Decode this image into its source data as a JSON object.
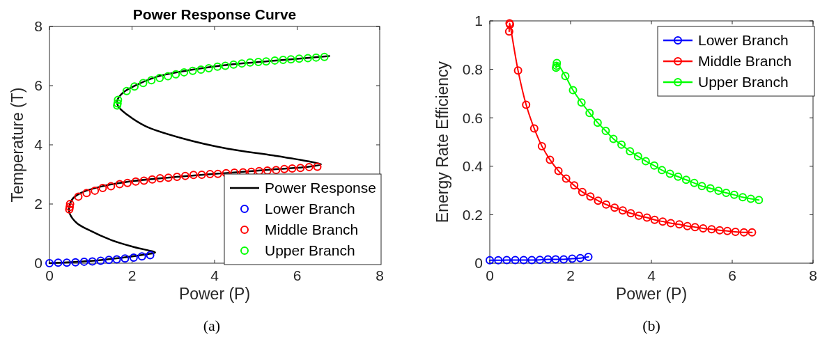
{
  "chart_data": [
    {
      "type": "line",
      "title": "Power Response Curve",
      "xlabel": "Power (P)",
      "ylabel": "Temperature (T)",
      "annotations": [
        "(a)"
      ],
      "xlim": [
        0,
        8
      ],
      "ylim": [
        0,
        8
      ],
      "xticks": [
        0,
        2,
        4,
        6,
        8
      ],
      "yticks": [
        0,
        2,
        4,
        6,
        8
      ],
      "grid": false,
      "legend": "bottom right",
      "marker": "circle",
      "series": [
        {
          "name": "Power Response",
          "color": "#000000",
          "marker": "none",
          "x": [
            0,
            0.94,
            1.78,
            2.4,
            2.56,
            2.06,
            1.5,
            0.94,
            0.66,
            0.49,
            0.48,
            0.57,
            0.77,
            1.22,
            2.06,
            3.19,
            4.31,
            5.43,
            6.28,
            6.58,
            6.28,
            5.43,
            4.31,
            3.19,
            2.34,
            1.89,
            1.67,
            1.64,
            1.78,
            2.06,
            2.62,
            3.47,
            4.31,
            5.43,
            6.78
          ],
          "values": [
            0,
            0.07,
            0.19,
            0.31,
            0.36,
            0.54,
            0.78,
            1.13,
            1.36,
            1.68,
            1.91,
            2.19,
            2.38,
            2.58,
            2.78,
            2.93,
            3.05,
            3.17,
            3.26,
            3.34,
            3.44,
            3.64,
            3.87,
            4.23,
            4.62,
            5.01,
            5.29,
            5.48,
            5.76,
            5.99,
            6.31,
            6.54,
            6.7,
            6.84,
            7.0
          ]
        },
        {
          "name": "Lower Branch",
          "color": "#0000ff",
          "type": "scatter",
          "x": [
            0,
            0.21,
            0.42,
            0.63,
            0.84,
            1.04,
            1.24,
            1.44,
            1.63,
            1.83,
            2.04,
            2.24,
            2.44
          ],
          "values": [
            0,
            0.02,
            0.02,
            0.03,
            0.05,
            0.06,
            0.08,
            0.11,
            0.13,
            0.16,
            0.19,
            0.23,
            0.27
          ]
        },
        {
          "name": "Middle Branch",
          "color": "#ff0000",
          "type": "scatter",
          "x": [
            0.48,
            0.49,
            0.5,
            0.7,
            0.9,
            1.1,
            1.29,
            1.49,
            1.7,
            1.89,
            2.09,
            2.29,
            2.49,
            2.68,
            2.88,
            3.09,
            3.29,
            3.49,
            3.69,
            3.89,
            4.08,
            4.28,
            4.48,
            4.69,
            4.89,
            5.08,
            5.28,
            5.49,
            5.69,
            5.88,
            6.08,
            6.29,
            6.49
          ],
          "values": [
            1.82,
            1.9,
            2.0,
            2.25,
            2.37,
            2.45,
            2.54,
            2.6,
            2.67,
            2.71,
            2.76,
            2.79,
            2.83,
            2.87,
            2.89,
            2.92,
            2.95,
            2.98,
            2.99,
            3.01,
            3.02,
            3.04,
            3.06,
            3.07,
            3.09,
            3.11,
            3.13,
            3.15,
            3.18,
            3.2,
            3.22,
            3.25,
            3.26
          ]
        },
        {
          "name": "Upper Branch",
          "color": "#00ff00",
          "type": "scatter",
          "x": [
            1.64,
            1.65,
            1.66,
            1.87,
            2.06,
            2.27,
            2.47,
            2.67,
            2.87,
            3.06,
            3.26,
            3.47,
            3.67,
            3.86,
            4.07,
            4.26,
            4.46,
            4.66,
            4.86,
            5.06,
            5.25,
            5.46,
            5.66,
            5.85,
            6.05,
            6.26,
            6.46,
            6.66
          ],
          "values": [
            5.33,
            5.4,
            5.52,
            5.82,
            5.97,
            6.09,
            6.18,
            6.26,
            6.32,
            6.38,
            6.45,
            6.5,
            6.54,
            6.59,
            6.64,
            6.67,
            6.71,
            6.75,
            6.78,
            6.8,
            6.82,
            6.85,
            6.87,
            6.89,
            6.91,
            6.93,
            6.95,
            6.97
          ]
        }
      ]
    },
    {
      "type": "line",
      "xlabel": "Power (P)",
      "ylabel": "Energy Rate Efficiency",
      "annotations": [
        "(b)"
      ],
      "xlim": [
        0,
        8
      ],
      "ylim": [
        0,
        1
      ],
      "xticks": [
        0,
        2,
        4,
        6,
        8
      ],
      "yticks": [
        0,
        0.2,
        0.4,
        0.6,
        0.8,
        1
      ],
      "grid": false,
      "legend": "top right",
      "marker": "circle",
      "series": [
        {
          "name": "Lower Branch",
          "color": "#0000ff",
          "x": [
            0,
            0.21,
            0.42,
            0.63,
            0.84,
            1.04,
            1.24,
            1.44,
            1.63,
            1.83,
            2.04,
            2.24,
            2.44
          ],
          "values": [
            0.012,
            0.012,
            0.013,
            0.013,
            0.013,
            0.013,
            0.014,
            0.016,
            0.016,
            0.016,
            0.019,
            0.021,
            0.026
          ]
        },
        {
          "name": "Middle Branch",
          "color": "#ff0000",
          "x": [
            0.48,
            0.49,
            0.5,
            0.7,
            0.9,
            1.1,
            1.29,
            1.49,
            1.7,
            1.89,
            2.09,
            2.29,
            2.49,
            2.68,
            2.88,
            3.09,
            3.29,
            3.49,
            3.69,
            3.89,
            4.08,
            4.28,
            4.48,
            4.69,
            4.89,
            5.08,
            5.28,
            5.49,
            5.69,
            5.88,
            6.08,
            6.29,
            6.49
          ],
          "values": [
            0.956,
            0.99,
            0.985,
            0.795,
            0.654,
            0.556,
            0.483,
            0.427,
            0.381,
            0.349,
            0.321,
            0.294,
            0.275,
            0.258,
            0.242,
            0.229,
            0.218,
            0.206,
            0.196,
            0.188,
            0.179,
            0.172,
            0.165,
            0.16,
            0.153,
            0.149,
            0.144,
            0.14,
            0.136,
            0.133,
            0.129,
            0.127,
            0.127
          ]
        },
        {
          "name": "Upper Branch",
          "color": "#00ff00",
          "x": [
            1.64,
            1.65,
            1.66,
            1.87,
            2.06,
            2.27,
            2.47,
            2.67,
            2.87,
            3.06,
            3.26,
            3.47,
            3.67,
            3.86,
            4.07,
            4.26,
            4.46,
            4.66,
            4.86,
            5.06,
            5.25,
            5.46,
            5.66,
            5.85,
            6.05,
            6.26,
            6.46,
            6.66
          ],
          "values": [
            0.807,
            0.815,
            0.826,
            0.772,
            0.714,
            0.663,
            0.62,
            0.58,
            0.546,
            0.513,
            0.489,
            0.462,
            0.441,
            0.421,
            0.403,
            0.384,
            0.369,
            0.357,
            0.344,
            0.331,
            0.318,
            0.309,
            0.299,
            0.29,
            0.282,
            0.272,
            0.266,
            0.261
          ]
        }
      ]
    }
  ]
}
